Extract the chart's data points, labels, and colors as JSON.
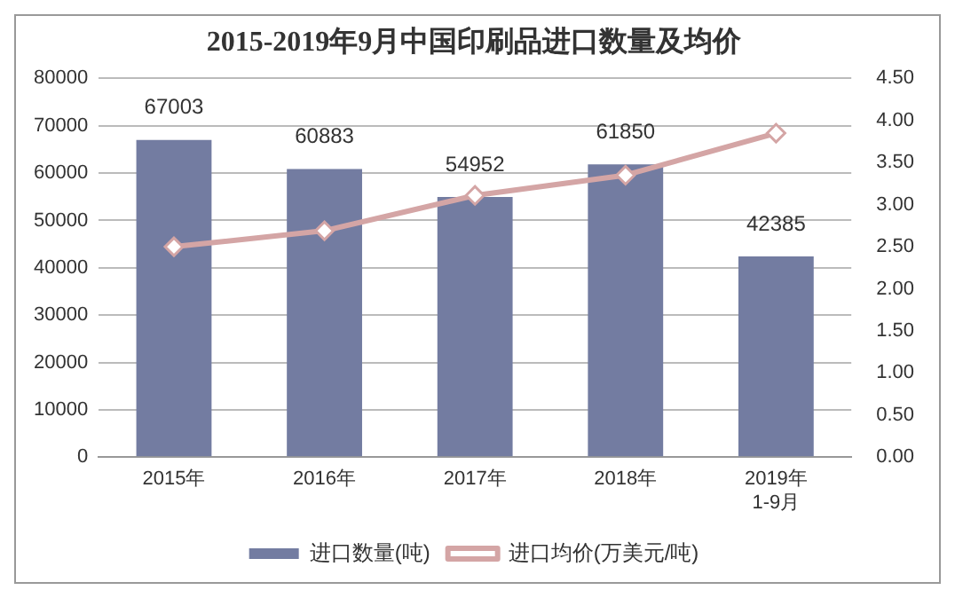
{
  "chart_data": {
    "type": "bar",
    "title": "2015-2019年9月中国印刷品进口数量及均价",
    "categories": [
      "2015年",
      "2016年",
      "2017年",
      "2018年",
      "2019年\n1-9月"
    ],
    "series": [
      {
        "name": "进口数量(吨)",
        "color": "#737ca1",
        "values": [
          67003,
          60883,
          54952,
          61850,
          42385
        ],
        "value_labels": [
          "67003",
          "60883",
          "54952",
          "61850",
          "42385"
        ]
      },
      {
        "name": "进口均价(万美元/吨)",
        "type": "line",
        "axis": "y2",
        "color": "#d4a5a5",
        "marker": "diamond",
        "values": [
          2.5,
          2.69,
          3.11,
          3.35,
          3.85
        ]
      }
    ],
    "ylim": [
      0,
      80000
    ],
    "yticks": [
      0,
      10000,
      20000,
      30000,
      40000,
      50000,
      60000,
      70000,
      80000
    ],
    "y2lim": [
      0,
      4.5
    ],
    "y2ticks": [
      {
        "value": 0,
        "label": "0.00"
      },
      {
        "value": 0.5,
        "label": "0.50"
      },
      {
        "value": 1,
        "label": "1.00"
      },
      {
        "value": 1.5,
        "label": "1.50"
      },
      {
        "value": 2,
        "label": "2.00"
      },
      {
        "value": 2.5,
        "label": "2.50"
      },
      {
        "value": 3,
        "label": "3.00"
      },
      {
        "value": 3.5,
        "label": "3.50"
      },
      {
        "value": 4,
        "label": "4.00"
      },
      {
        "value": 4.5,
        "label": "4.50"
      }
    ],
    "grid": "y",
    "legend": "bottom"
  }
}
